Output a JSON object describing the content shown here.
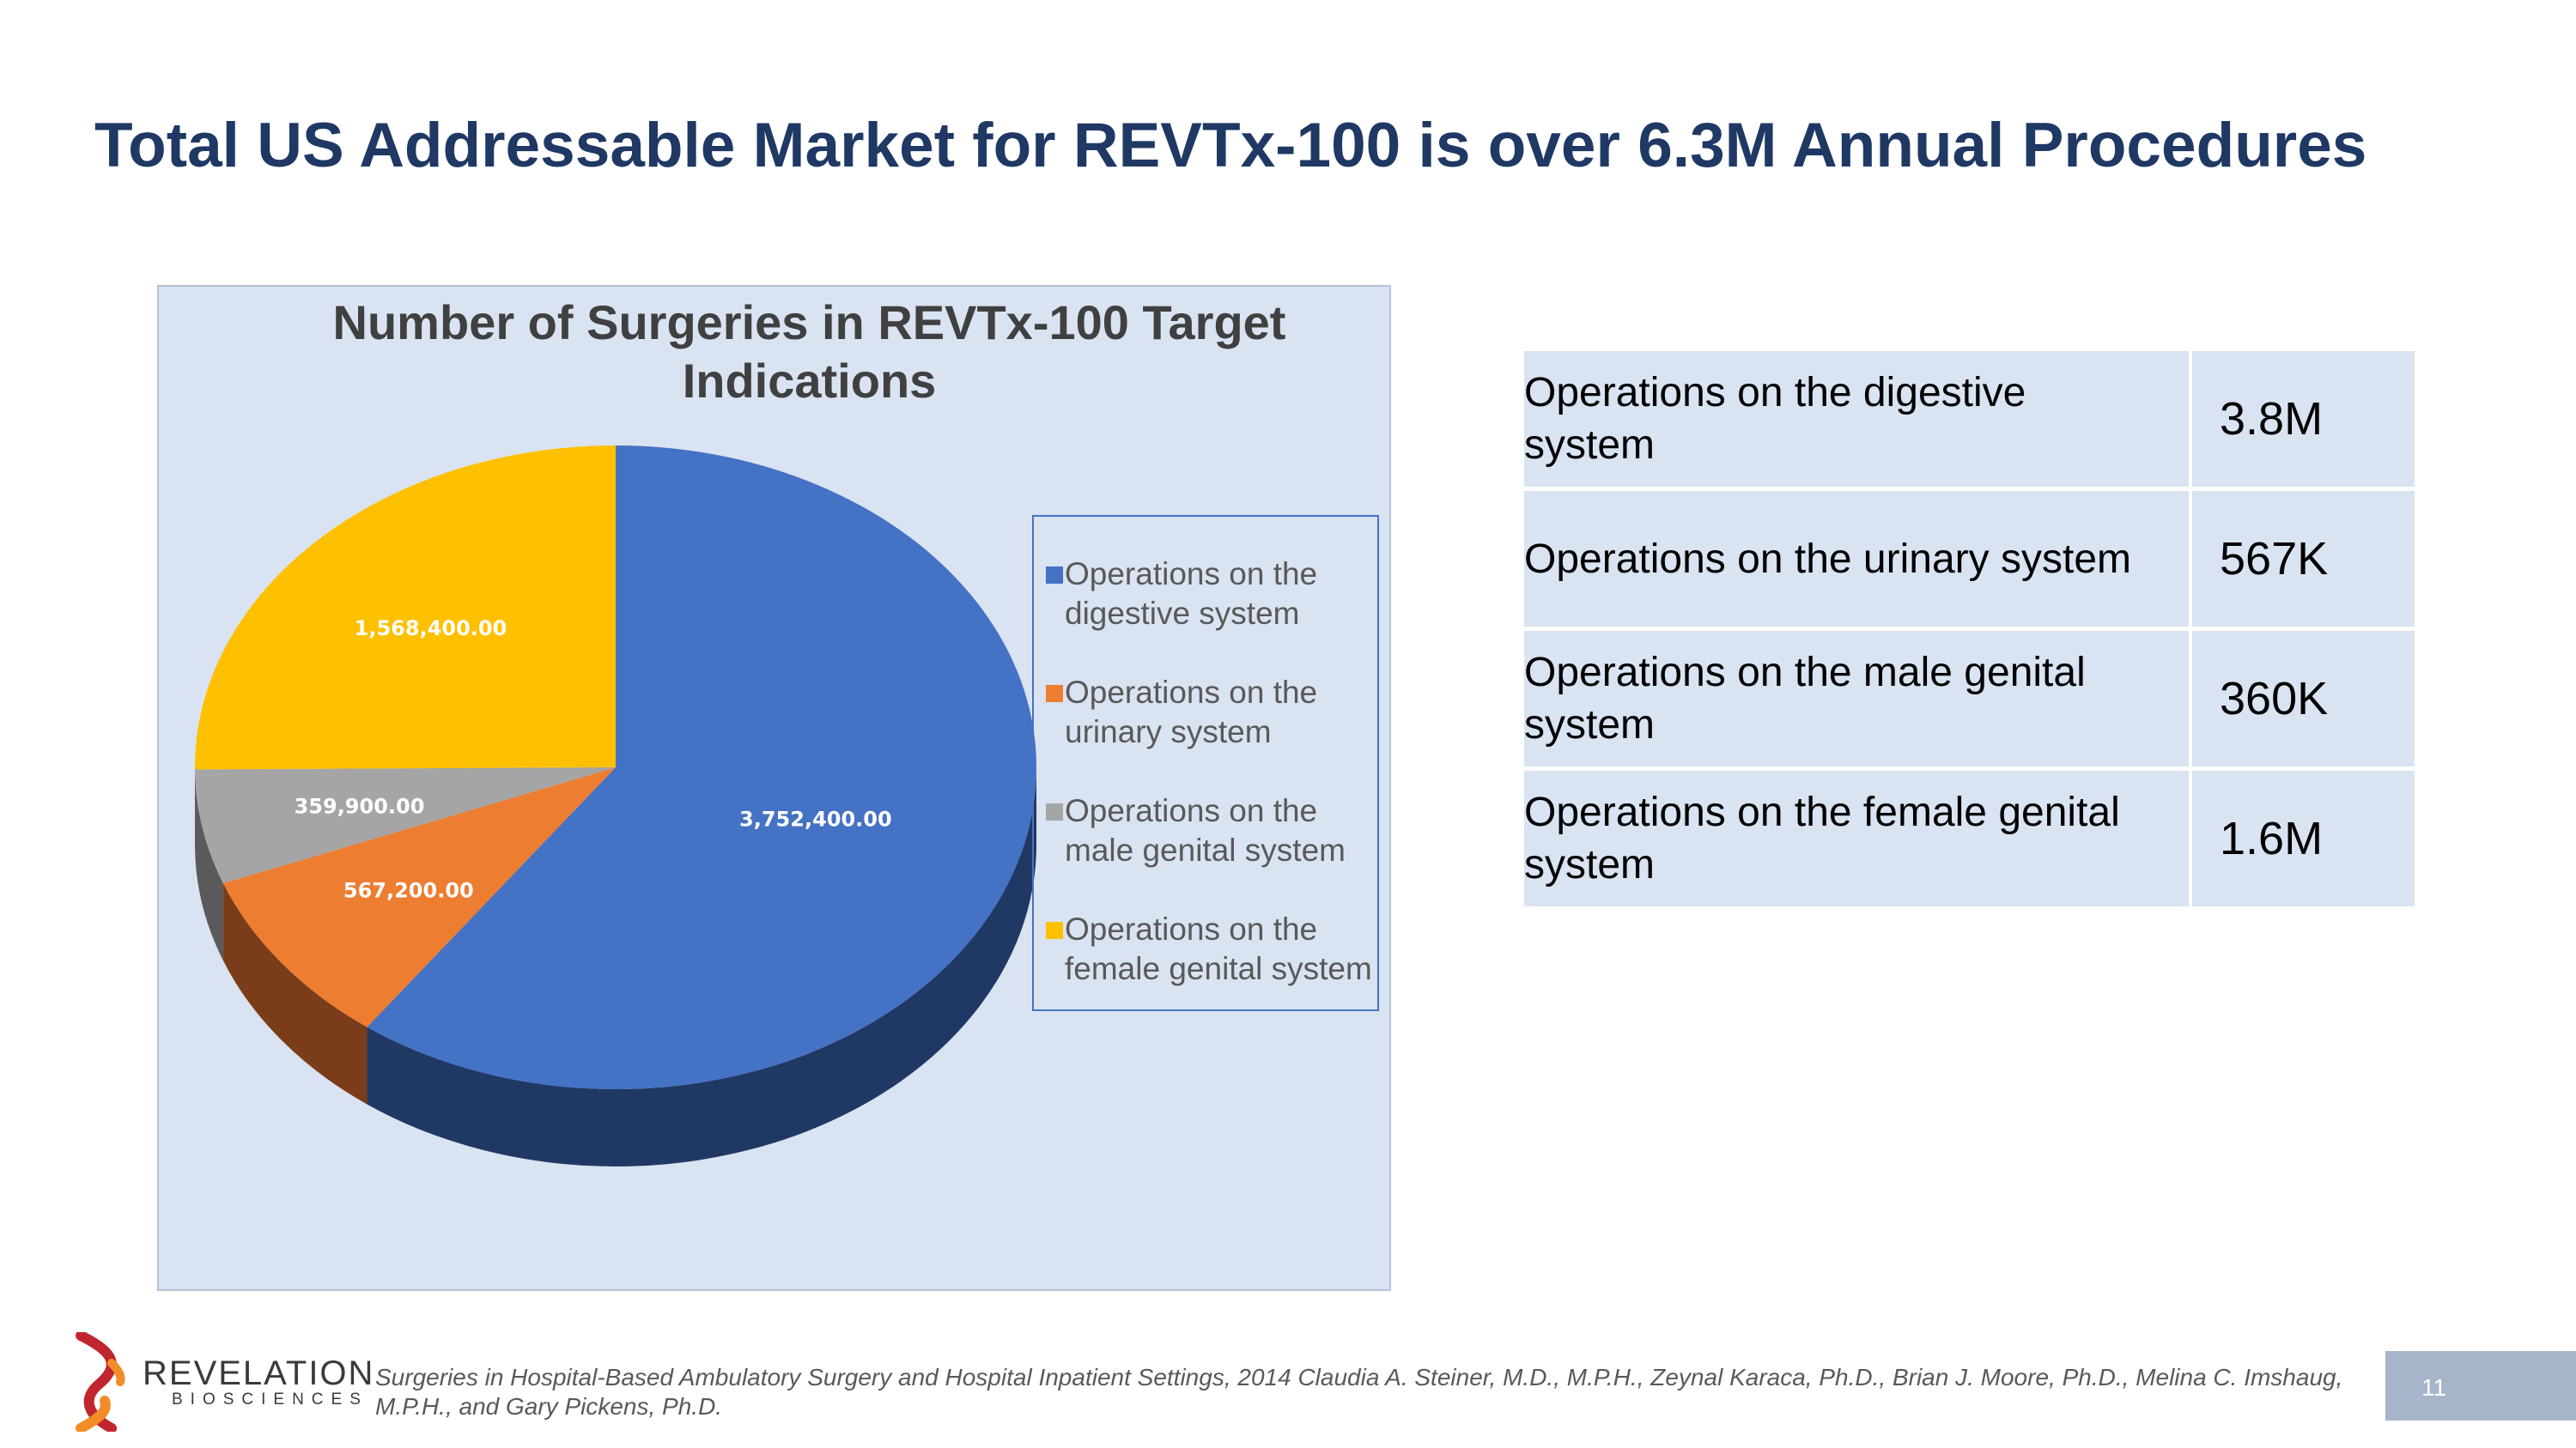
{
  "slide": {
    "title": "Total US Addressable Market for REVTx-100 is over 6.3M Annual Procedures",
    "page_number": "11",
    "footnote": "Surgeries in Hospital-Based Ambulatory Surgery and Hospital Inpatient Settings, 2014 Claudia A. Steiner, M.D., M.P.H., Zeynal Karaca, Ph.D., Brian J. Moore, Ph.D., Melina C. Imshaug, M.P.H., and Gary Pickens, Ph.D.",
    "logo": {
      "name": "REVELATION",
      "sub": "BIOSCIENCES"
    }
  },
  "chart_data": {
    "type": "pie",
    "title": "Number of Surgeries in REVTx-100 Target Indications",
    "title_lines": [
      "Number of Surgeries in REVTx-100 Target",
      "Indications"
    ],
    "categories": [
      "Operations on the digestive system",
      "Operations on the urinary system",
      "Operations on the male genital system",
      "Operations on the female genital system"
    ],
    "legend_lines": [
      [
        "Operations on the",
        "digestive system"
      ],
      [
        "Operations on the",
        "urinary system"
      ],
      [
        "Operations on the",
        "male genital system"
      ],
      [
        "Operations on the",
        "female genital system"
      ]
    ],
    "values": [
      3752400,
      567200,
      359900,
      1568400
    ],
    "data_labels": [
      "3,752,400.00",
      "567,200.00",
      "359,900.00",
      "1,568,400.00"
    ],
    "colors": [
      "#4472c4",
      "#ed7d31",
      "#a5a5a5",
      "#ffc000"
    ],
    "side_colors": [
      "#203864",
      "#7b3d19",
      "#5a5a5a",
      "#8a6800"
    ],
    "style": "3d",
    "legend_position": "right"
  },
  "table": {
    "rows": [
      {
        "label_lines": [
          "Operations on the digestive",
          "system"
        ],
        "value": "3.8M"
      },
      {
        "label_lines": [
          "Operations on the urinary system"
        ],
        "value": "567K"
      },
      {
        "label_lines": [
          "Operations on the male genital",
          "system"
        ],
        "value": "360K"
      },
      {
        "label_lines": [
          "Operations on the female genital",
          "system"
        ],
        "value": "1.6M"
      }
    ]
  }
}
